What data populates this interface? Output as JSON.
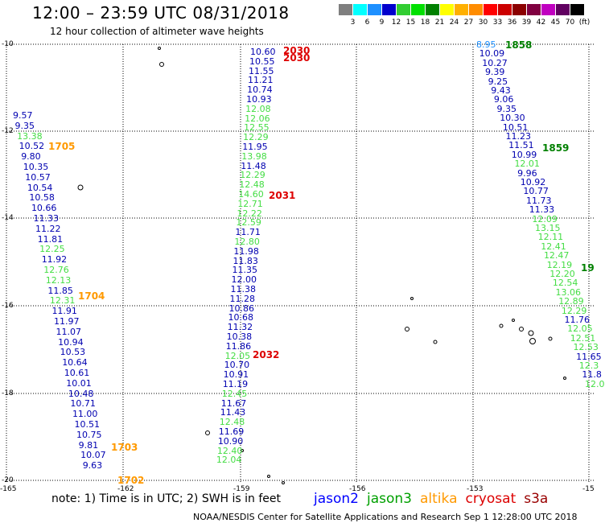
{
  "title": "12:00 – 23:59 UTC 08/31/2018",
  "subtitle": "12 hour collection of altimeter wave heights",
  "colorbar": {
    "colors": [
      "#7f7f7f",
      "#00ffff",
      "#1e90ff",
      "#0000cd",
      "#32cd32",
      "#00e000",
      "#008000",
      "#ffff00",
      "#ffb000",
      "#ff8c00",
      "#ff0000",
      "#cc0000",
      "#8b0000",
      "#800040",
      "#c000c0",
      "#600060",
      "#000000"
    ],
    "labels": [
      "3",
      "6",
      "9",
      "12",
      "15",
      "18",
      "21",
      "24",
      "27",
      "30",
      "33",
      "36",
      "39",
      "42",
      "45",
      "70",
      "(ft)"
    ]
  },
  "map": {
    "lon_labels": [
      "-165",
      "-162",
      "-159",
      "-156",
      "-153",
      "-15"
    ],
    "lat_labels": [
      "-10",
      "-12",
      "-14",
      "-16",
      "-18",
      "-20"
    ]
  },
  "tracks": [
    {
      "id": "jason2-162",
      "points": [
        {
          "t": "9.57",
          "c": "#0000b0"
        },
        {
          "t": "9.35",
          "c": "#0000b0"
        },
        {
          "t": "13.38",
          "c": "#44dd44"
        },
        {
          "t": "10.52",
          "c": "#0000b0"
        },
        {
          "t": "9.80",
          "c": "#0000b0"
        },
        {
          "t": "10.35",
          "c": "#0000b0"
        },
        {
          "t": "10.57",
          "c": "#0000b0"
        },
        {
          "t": "10.54",
          "c": "#0000b0"
        },
        {
          "t": "10.58",
          "c": "#0000b0"
        },
        {
          "t": "10.66",
          "c": "#0000b0"
        },
        {
          "t": "11.33",
          "c": "#0000b0"
        },
        {
          "t": "11.22",
          "c": "#0000b0"
        },
        {
          "t": "11.81",
          "c": "#0000b0"
        },
        {
          "t": "12.25",
          "c": "#44dd44"
        },
        {
          "t": "11.92",
          "c": "#0000b0"
        },
        {
          "t": "12.76",
          "c": "#44dd44"
        },
        {
          "t": "12.13",
          "c": "#44dd44"
        },
        {
          "t": "11.85",
          "c": "#0000b0"
        },
        {
          "t": "12.31",
          "c": "#44dd44"
        },
        {
          "t": "11.91",
          "c": "#0000b0"
        },
        {
          "t": "11.97",
          "c": "#0000b0"
        },
        {
          "t": "11.07",
          "c": "#0000b0"
        },
        {
          "t": "10.94",
          "c": "#0000b0"
        },
        {
          "t": "10.53",
          "c": "#0000b0"
        },
        {
          "t": "10.64",
          "c": "#0000b0"
        },
        {
          "t": "10.61",
          "c": "#0000b0"
        },
        {
          "t": "10.01",
          "c": "#0000b0"
        },
        {
          "t": "10.48",
          "c": "#0000b0"
        },
        {
          "t": "10.71",
          "c": "#0000b0"
        },
        {
          "t": "11.00",
          "c": "#0000b0"
        },
        {
          "t": "10.51",
          "c": "#0000b0"
        },
        {
          "t": "10.75",
          "c": "#0000b0"
        },
        {
          "t": "9.81",
          "c": "#0000b0"
        },
        {
          "t": "10.07",
          "c": "#0000b0"
        },
        {
          "t": "9.63",
          "c": "#0000b0"
        }
      ]
    },
    {
      "id": "jason2-159",
      "points": [
        {
          "t": "10.60",
          "c": "#0000b0"
        },
        {
          "t": "10.55",
          "c": "#0000b0"
        },
        {
          "t": "11.55",
          "c": "#0000b0"
        },
        {
          "t": "11.21",
          "c": "#0000b0"
        },
        {
          "t": "10.74",
          "c": "#0000b0"
        },
        {
          "t": "10.93",
          "c": "#0000b0"
        },
        {
          "t": "12.08",
          "c": "#44dd44"
        },
        {
          "t": "12.06",
          "c": "#44dd44"
        },
        {
          "t": "12.55",
          "c": "#44dd44"
        },
        {
          "t": "12.29",
          "c": "#44dd44"
        },
        {
          "t": "11.95",
          "c": "#0000b0"
        },
        {
          "t": "13.98",
          "c": "#44dd44"
        },
        {
          "t": "11.48",
          "c": "#0000b0"
        },
        {
          "t": "12.29",
          "c": "#44dd44"
        },
        {
          "t": "12.48",
          "c": "#44dd44"
        },
        {
          "t": "14.60",
          "c": "#44dd44"
        },
        {
          "t": "12.71",
          "c": "#44dd44"
        },
        {
          "t": "12.22",
          "c": "#44dd44"
        },
        {
          "t": "12.59",
          "c": "#44dd44"
        },
        {
          "t": "11.71",
          "c": "#0000b0"
        },
        {
          "t": "12.80",
          "c": "#44dd44"
        },
        {
          "t": "11.98",
          "c": "#0000b0"
        },
        {
          "t": "11.83",
          "c": "#0000b0"
        },
        {
          "t": "11.35",
          "c": "#0000b0"
        },
        {
          "t": "12.00",
          "c": "#0000b0"
        },
        {
          "t": "11.38",
          "c": "#0000b0"
        },
        {
          "t": "11.28",
          "c": "#0000b0"
        },
        {
          "t": "10.86",
          "c": "#0000b0"
        },
        {
          "t": "10.68",
          "c": "#0000b0"
        },
        {
          "t": "11.32",
          "c": "#0000b0"
        },
        {
          "t": "10.38",
          "c": "#0000b0"
        },
        {
          "t": "11.86",
          "c": "#0000b0"
        },
        {
          "t": "12.05",
          "c": "#44dd44"
        },
        {
          "t": "10.70",
          "c": "#0000b0"
        },
        {
          "t": "10.91",
          "c": "#0000b0"
        },
        {
          "t": "11.19",
          "c": "#0000b0"
        },
        {
          "t": "12.45",
          "c": "#44dd44"
        },
        {
          "t": "11.67",
          "c": "#0000b0"
        },
        {
          "t": "11.43",
          "c": "#0000b0"
        },
        {
          "t": "12.48",
          "c": "#44dd44"
        },
        {
          "t": "11.69",
          "c": "#0000b0"
        },
        {
          "t": "10.90",
          "c": "#0000b0"
        },
        {
          "t": "12.40",
          "c": "#44dd44"
        },
        {
          "t": "12.04",
          "c": "#44dd44"
        }
      ]
    },
    {
      "id": "jason3-153",
      "points": [
        {
          "t": "8.95",
          "c": "#1e90ff"
        },
        {
          "t": "10.09",
          "c": "#0000b0"
        },
        {
          "t": "10.27",
          "c": "#0000b0"
        },
        {
          "t": "9.39",
          "c": "#0000b0"
        },
        {
          "t": "9.25",
          "c": "#0000b0"
        },
        {
          "t": "9.43",
          "c": "#0000b0"
        },
        {
          "t": "9.06",
          "c": "#0000b0"
        },
        {
          "t": "9.35",
          "c": "#0000b0"
        },
        {
          "t": "10.30",
          "c": "#0000b0"
        },
        {
          "t": "10.51",
          "c": "#0000b0"
        },
        {
          "t": "11.23",
          "c": "#0000b0"
        },
        {
          "t": "11.51",
          "c": "#0000b0"
        },
        {
          "t": "10.99",
          "c": "#0000b0"
        },
        {
          "t": "12.01",
          "c": "#44dd44"
        },
        {
          "t": "9.96",
          "c": "#0000b0"
        },
        {
          "t": "10.92",
          "c": "#0000b0"
        },
        {
          "t": "10.77",
          "c": "#0000b0"
        },
        {
          "t": "11.73",
          "c": "#0000b0"
        },
        {
          "t": "11.33",
          "c": "#0000b0"
        },
        {
          "t": "12.09",
          "c": "#44dd44"
        },
        {
          "t": "13.15",
          "c": "#44dd44"
        },
        {
          "t": "12.11",
          "c": "#44dd44"
        },
        {
          "t": "12.41",
          "c": "#44dd44"
        },
        {
          "t": "12.47",
          "c": "#44dd44"
        },
        {
          "t": "12.19",
          "c": "#44dd44"
        },
        {
          "t": "12.20",
          "c": "#44dd44"
        },
        {
          "t": "12.54",
          "c": "#44dd44"
        },
        {
          "t": "13.06",
          "c": "#44dd44"
        },
        {
          "t": "12.89",
          "c": "#44dd44"
        },
        {
          "t": "12.29",
          "c": "#44dd44"
        },
        {
          "t": "11.76",
          "c": "#0000b0"
        },
        {
          "t": "12.05",
          "c": "#44dd44"
        },
        {
          "t": "12.51",
          "c": "#44dd44"
        },
        {
          "t": "12.53",
          "c": "#44dd44"
        },
        {
          "t": "11.65",
          "c": "#0000b0"
        },
        {
          "t": "12.3",
          "c": "#44dd44"
        },
        {
          "t": "11.8",
          "c": "#0000b0"
        },
        {
          "t": "12.0",
          "c": "#44dd44"
        }
      ]
    }
  ],
  "time_labels": [
    {
      "t": "1705",
      "c": "#ff9900"
    },
    {
      "t": "1704",
      "c": "#ff9900"
    },
    {
      "t": "1703",
      "c": "#ff9900"
    },
    {
      "t": "1702",
      "c": "#ff9900"
    },
    {
      "t": "2030",
      "c": "#dd0000"
    },
    {
      "t": "2030",
      "c": "#dd0000"
    },
    {
      "t": "2031",
      "c": "#dd0000"
    },
    {
      "t": "2032",
      "c": "#dd0000"
    },
    {
      "t": "1858",
      "c": "#008000"
    },
    {
      "t": "1859",
      "c": "#008000"
    },
    {
      "t": "19",
      "c": "#008000"
    }
  ],
  "note": "note:  1) Time is in UTC;  2) SWH is in feet",
  "legend": [
    {
      "t": "jason2",
      "c": "#0000ff"
    },
    {
      "t": "jason3",
      "c": "#00a000"
    },
    {
      "t": "altika",
      "c": "#ff9900"
    },
    {
      "t": "cryosat",
      "c": "#dd0000"
    },
    {
      "t": "s3a",
      "c": "#990000"
    }
  ],
  "credit": "NOAA/NESDIS Center for Satellite Applications and Research    Sep  1 12:28:00 UTC 2018"
}
